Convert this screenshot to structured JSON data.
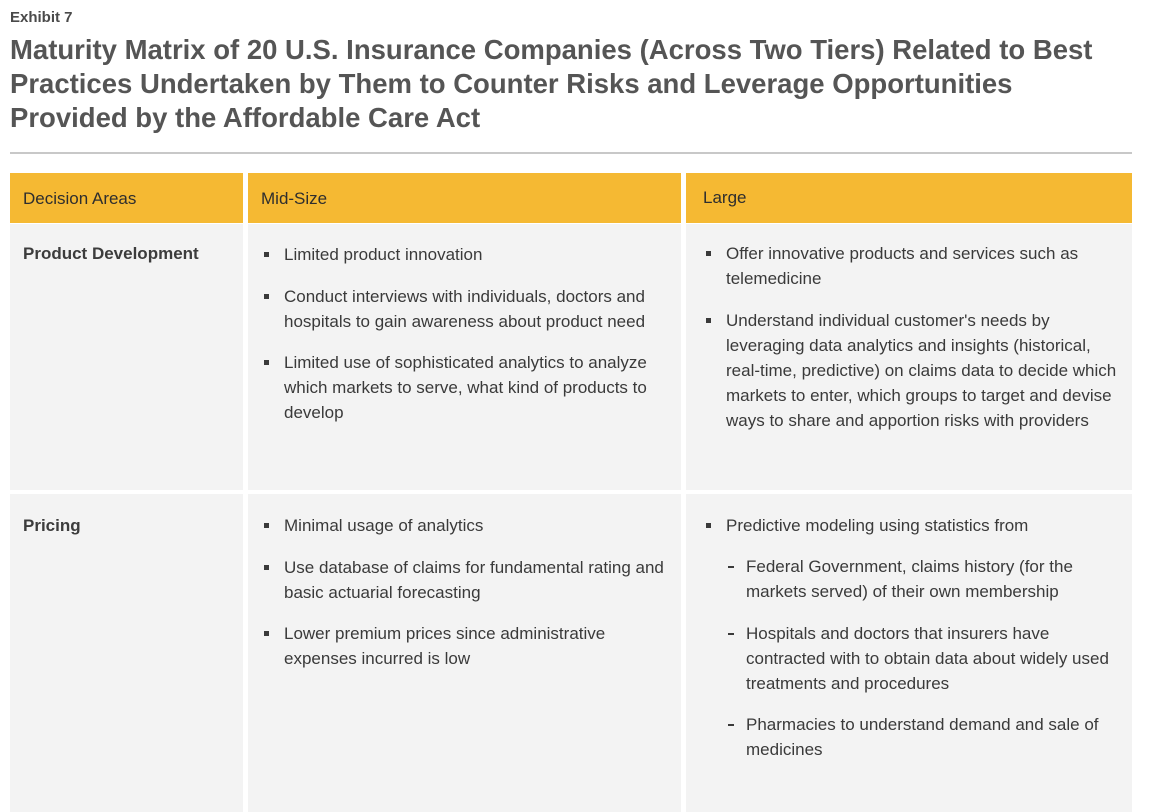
{
  "exhibit_label": "Exhibit 7",
  "title": "Maturity Matrix of 20 U.S. Insurance Companies (Across Two Tiers) Related to Best Practices Undertaken by Them to Counter Risks and Leverage Opportunities Provided by the Affordable Care Act",
  "colors": {
    "header_bg": "#f5b933",
    "cell_bg": "#f3f3f3",
    "rule": "#c8c8c8"
  },
  "table": {
    "headers": [
      "Decision Areas",
      "Mid-Size",
      "Large"
    ],
    "rows": [
      {
        "area": "Product Development",
        "mid": [
          "Limited product innovation",
          "Conduct interviews with individuals, doctors and hospitals to gain awareness about product need",
          "Limited use of sophisticated analytics to analyze which markets to serve, what kind of products to develop"
        ],
        "large": [
          "Offer innovative products and services such as telemedicine",
          "Understand individual customer's needs by leveraging data analytics and insights (historical, real-time, predictive) on claims data to decide which markets to enter, which groups to target and devise ways to share and apportion risks with providers"
        ]
      },
      {
        "area": "Pricing",
        "mid": [
          "Minimal usage of analytics",
          "Use database of claims for fundamental rating and basic actuarial forecasting",
          "Lower premium prices since administrative expenses incurred is low"
        ],
        "large": [
          "Predictive modeling using statistics from"
        ],
        "large_sub": [
          "Federal Government, claims history (for the markets served) of their own membership",
          "Hospitals and doctors that insurers have contracted with to obtain data about widely used treatments and procedures",
          "Pharmacies to understand demand and sale of medicines"
        ]
      }
    ]
  }
}
